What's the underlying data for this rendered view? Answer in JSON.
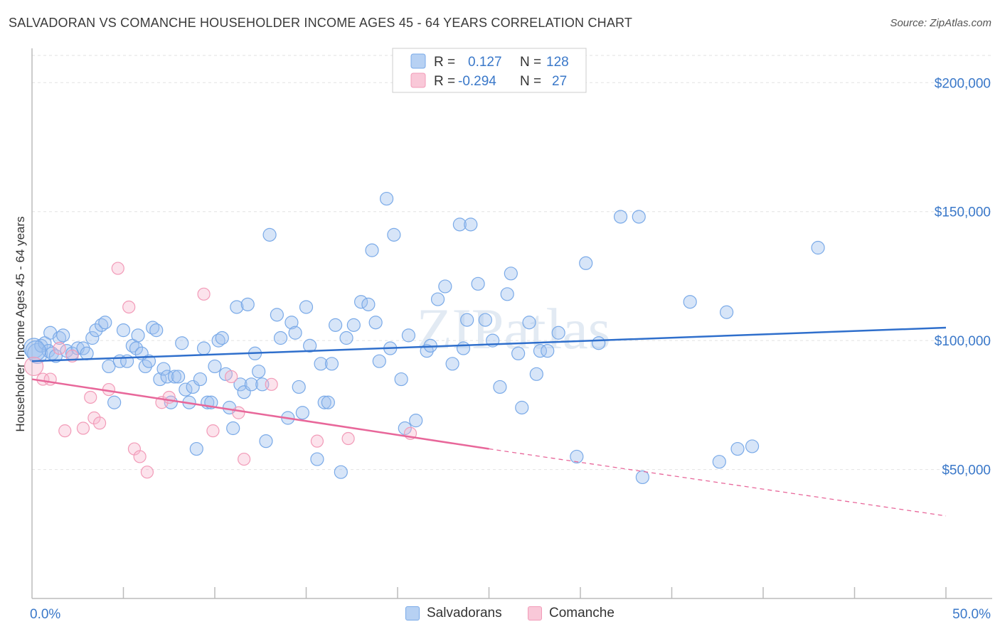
{
  "title": "SALVADORAN VS COMANCHE HOUSEHOLDER INCOME AGES 45 - 64 YEARS CORRELATION CHART",
  "source": "Source: ZipAtlas.com",
  "watermark": "ZIPatlas",
  "legend_top": {
    "rows": [
      {
        "r_label": "R =",
        "r_value": "0.127",
        "n_label": "N =",
        "n_value": "128"
      },
      {
        "r_label": "R =",
        "r_value": "-0.294",
        "n_label": "N =",
        "n_value": "27"
      }
    ]
  },
  "chart_data": {
    "type": "scatter",
    "title": "SALVADORAN VS COMANCHE HOUSEHOLDER INCOME AGES 45 - 64 YEARS CORRELATION CHART",
    "xlabel": "",
    "ylabel": "Householder Income Ages 45 - 64 years",
    "x_tick_labels": [
      "0.0%",
      "50.0%"
    ],
    "y_tick_labels": [
      "$50,000",
      "$100,000",
      "$150,000",
      "$200,000"
    ],
    "y_ticks": [
      50000,
      100000,
      150000,
      200000
    ],
    "xlim": [
      0,
      50
    ],
    "ylim": [
      0,
      210000
    ],
    "grid": true,
    "legend_position": "bottom-center",
    "colors": {
      "Salvadorans": "#7aaae8",
      "Comanche": "#f29bb8",
      "salv_line": "#2f6fcc",
      "com_line": "#e8679a"
    },
    "series": [
      {
        "name": "Salvadorans",
        "r": 0.127,
        "n": 128,
        "trend": {
          "x": [
            0,
            50
          ],
          "y": [
            92000,
            105000
          ]
        },
        "points": [
          [
            0.1,
            97000
          ],
          [
            0.3,
            95000
          ],
          [
            0.5,
            98000
          ],
          [
            0.7,
            99000
          ],
          [
            0.9,
            96000
          ],
          [
            1.0,
            103000
          ],
          [
            1.1,
            95000
          ],
          [
            1.3,
            94000
          ],
          [
            1.5,
            101000
          ],
          [
            1.7,
            102000
          ],
          [
            1.9,
            96000
          ],
          [
            2.2,
            95000
          ],
          [
            2.5,
            97000
          ],
          [
            2.8,
            97000
          ],
          [
            3.0,
            95000
          ],
          [
            3.3,
            101000
          ],
          [
            3.5,
            104000
          ],
          [
            3.8,
            106000
          ],
          [
            4.0,
            107000
          ],
          [
            4.2,
            90000
          ],
          [
            4.5,
            76000
          ],
          [
            4.8,
            92000
          ],
          [
            5.0,
            104000
          ],
          [
            5.2,
            92000
          ],
          [
            5.5,
            98000
          ],
          [
            5.7,
            97000
          ],
          [
            5.8,
            102000
          ],
          [
            6.0,
            95000
          ],
          [
            6.2,
            90000
          ],
          [
            6.4,
            92000
          ],
          [
            6.6,
            105000
          ],
          [
            6.8,
            104000
          ],
          [
            7.0,
            85000
          ],
          [
            7.2,
            89000
          ],
          [
            7.4,
            86000
          ],
          [
            7.6,
            76000
          ],
          [
            7.8,
            86000
          ],
          [
            8.0,
            86000
          ],
          [
            8.2,
            99000
          ],
          [
            8.4,
            81000
          ],
          [
            8.6,
            76000
          ],
          [
            8.8,
            82000
          ],
          [
            9.0,
            58000
          ],
          [
            9.2,
            85000
          ],
          [
            9.4,
            97000
          ],
          [
            9.6,
            76000
          ],
          [
            9.8,
            76000
          ],
          [
            10.0,
            90000
          ],
          [
            10.2,
            100000
          ],
          [
            10.4,
            101000
          ],
          [
            10.6,
            87000
          ],
          [
            10.8,
            74000
          ],
          [
            11.0,
            66000
          ],
          [
            11.2,
            113000
          ],
          [
            11.4,
            83000
          ],
          [
            11.6,
            80000
          ],
          [
            11.8,
            114000
          ],
          [
            12.0,
            83000
          ],
          [
            12.2,
            95000
          ],
          [
            12.4,
            88000
          ],
          [
            12.6,
            83000
          ],
          [
            12.8,
            61000
          ],
          [
            13.0,
            141000
          ],
          [
            13.4,
            110000
          ],
          [
            13.6,
            101000
          ],
          [
            14.0,
            70000
          ],
          [
            14.2,
            107000
          ],
          [
            14.4,
            103000
          ],
          [
            14.6,
            82000
          ],
          [
            14.8,
            72000
          ],
          [
            15.0,
            113000
          ],
          [
            15.2,
            98000
          ],
          [
            15.6,
            54000
          ],
          [
            15.8,
            91000
          ],
          [
            16.0,
            76000
          ],
          [
            16.2,
            76000
          ],
          [
            16.4,
            91000
          ],
          [
            16.6,
            106000
          ],
          [
            16.9,
            49000
          ],
          [
            17.2,
            101000
          ],
          [
            17.6,
            106000
          ],
          [
            18.0,
            115000
          ],
          [
            18.4,
            114000
          ],
          [
            18.6,
            135000
          ],
          [
            18.8,
            107000
          ],
          [
            19.0,
            92000
          ],
          [
            19.4,
            155000
          ],
          [
            19.6,
            97000
          ],
          [
            19.8,
            141000
          ],
          [
            20.2,
            85000
          ],
          [
            20.6,
            102000
          ],
          [
            21.0,
            69000
          ],
          [
            20.4,
            66000
          ],
          [
            21.6,
            96000
          ],
          [
            21.8,
            98000
          ],
          [
            22.2,
            116000
          ],
          [
            22.6,
            121000
          ],
          [
            23.0,
            91000
          ],
          [
            23.4,
            145000
          ],
          [
            23.8,
            108000
          ],
          [
            23.6,
            97000
          ],
          [
            24.0,
            145000
          ],
          [
            24.4,
            122000
          ],
          [
            24.8,
            108000
          ],
          [
            25.2,
            100000
          ],
          [
            25.6,
            82000
          ],
          [
            26.0,
            118000
          ],
          [
            26.2,
            126000
          ],
          [
            26.6,
            95000
          ],
          [
            26.8,
            74000
          ],
          [
            27.2,
            107000
          ],
          [
            27.6,
            87000
          ],
          [
            27.8,
            96000
          ],
          [
            28.2,
            96000
          ],
          [
            28.8,
            103000
          ],
          [
            29.8,
            55000
          ],
          [
            30.3,
            130000
          ],
          [
            31.0,
            99000
          ],
          [
            32.2,
            148000
          ],
          [
            33.2,
            148000
          ],
          [
            33.4,
            47000
          ],
          [
            36.0,
            115000
          ],
          [
            37.6,
            53000
          ],
          [
            38.0,
            111000
          ],
          [
            38.6,
            58000
          ],
          [
            39.4,
            59000
          ],
          [
            43.0,
            136000
          ],
          [
            0.2,
            96000
          ]
        ]
      },
      {
        "name": "Comanche",
        "r": -0.294,
        "n": 27,
        "trend": {
          "x": [
            0,
            25
          ],
          "y": [
            85000,
            58000
          ]
        },
        "trend_dashed": {
          "x": [
            25,
            50
          ],
          "y": [
            58000,
            32000
          ]
        },
        "points": [
          [
            0.1,
            90000
          ],
          [
            0.6,
            85000
          ],
          [
            1.0,
            85000
          ],
          [
            1.5,
            97000
          ],
          [
            1.8,
            65000
          ],
          [
            2.2,
            94000
          ],
          [
            2.8,
            66000
          ],
          [
            3.2,
            78000
          ],
          [
            3.4,
            70000
          ],
          [
            3.7,
            68000
          ],
          [
            4.2,
            81000
          ],
          [
            4.7,
            128000
          ],
          [
            5.3,
            113000
          ],
          [
            5.6,
            58000
          ],
          [
            5.9,
            55000
          ],
          [
            6.3,
            49000
          ],
          [
            7.1,
            76000
          ],
          [
            7.5,
            78000
          ],
          [
            9.4,
            118000
          ],
          [
            9.9,
            65000
          ],
          [
            10.9,
            86000
          ],
          [
            11.3,
            72000
          ],
          [
            11.6,
            54000
          ],
          [
            13.1,
            83000
          ],
          [
            15.6,
            61000
          ],
          [
            17.3,
            62000
          ],
          [
            20.7,
            64000
          ]
        ]
      }
    ]
  },
  "bottom_legend": {
    "items": [
      "Salvadorans",
      "Comanche"
    ]
  }
}
